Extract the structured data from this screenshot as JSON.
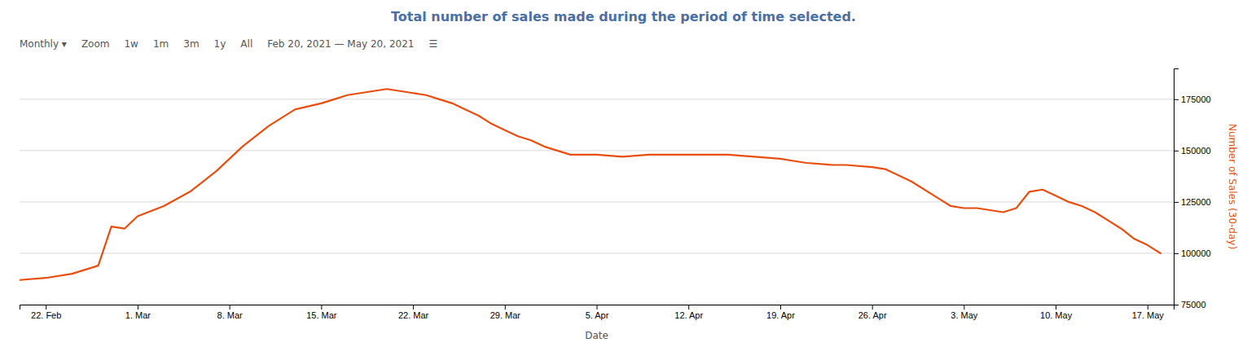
{
  "chart_data": {
    "type": "line",
    "title": "Total number of sales made during the period of time selected.",
    "annotations": [
      "Monthly ▾",
      "Zoom",
      "1w",
      "1m",
      "3m",
      "1y",
      "All",
      "Feb 20, 2021  —  May 20, 2021",
      "☰"
    ],
    "xlabel": "Date",
    "ylabel": "Number of Sales (30-day)",
    "color": "#e84e0f",
    "grid": true,
    "xlim": [
      0,
      88
    ],
    "xticks": [
      {
        "value": 2,
        "label": "22. Feb"
      },
      {
        "value": 9,
        "label": "1. Mar"
      },
      {
        "value": 16,
        "label": "8. Mar"
      },
      {
        "value": 23,
        "label": "15. Mar"
      },
      {
        "value": 30,
        "label": "22. Mar"
      },
      {
        "value": 37,
        "label": "29. Mar"
      },
      {
        "value": 44,
        "label": "5. Apr"
      },
      {
        "value": 51,
        "label": "12. Apr"
      },
      {
        "value": 58,
        "label": "19. Apr"
      },
      {
        "value": 65,
        "label": "26. Apr"
      },
      {
        "value": 72,
        "label": "3. May"
      },
      {
        "value": 79,
        "label": "10. May"
      },
      {
        "value": 86,
        "label": "17. May"
      }
    ],
    "ylim": [
      75000,
      190000
    ],
    "yticks": [
      75000,
      100000,
      125000,
      150000,
      175000
    ],
    "x": [
      0,
      2,
      4,
      6,
      7,
      8,
      9,
      11,
      13,
      15,
      17,
      19,
      21,
      23,
      24,
      25,
      26,
      27,
      28,
      29,
      30,
      31,
      32,
      33,
      34,
      35,
      36,
      37,
      38,
      39,
      40,
      41,
      42,
      44,
      46,
      48,
      50,
      52,
      54,
      56,
      58,
      59,
      60,
      62,
      63,
      65,
      66,
      68,
      70,
      71,
      72,
      73,
      74,
      75,
      76,
      77,
      78,
      79,
      80,
      81,
      82,
      83,
      84,
      85,
      86,
      87
    ],
    "values": [
      87000,
      88000,
      90000,
      94000,
      113000,
      112000,
      118000,
      123000,
      130000,
      140000,
      152000,
      162000,
      170000,
      173000,
      175000,
      177000,
      178000,
      179000,
      180000,
      179000,
      178000,
      177000,
      175000,
      173000,
      170000,
      167000,
      163000,
      160000,
      157000,
      155000,
      152000,
      150000,
      148000,
      148000,
      147000,
      148000,
      148000,
      148000,
      148000,
      147000,
      146000,
      145000,
      144000,
      143000,
      143000,
      142000,
      141000,
      135000,
      127000,
      123000,
      122000,
      122000,
      121000,
      120000,
      122000,
      130000,
      131000,
      128000,
      125000,
      123000,
      120000,
      116000,
      112000,
      107000,
      104000,
      100000
    ]
  }
}
